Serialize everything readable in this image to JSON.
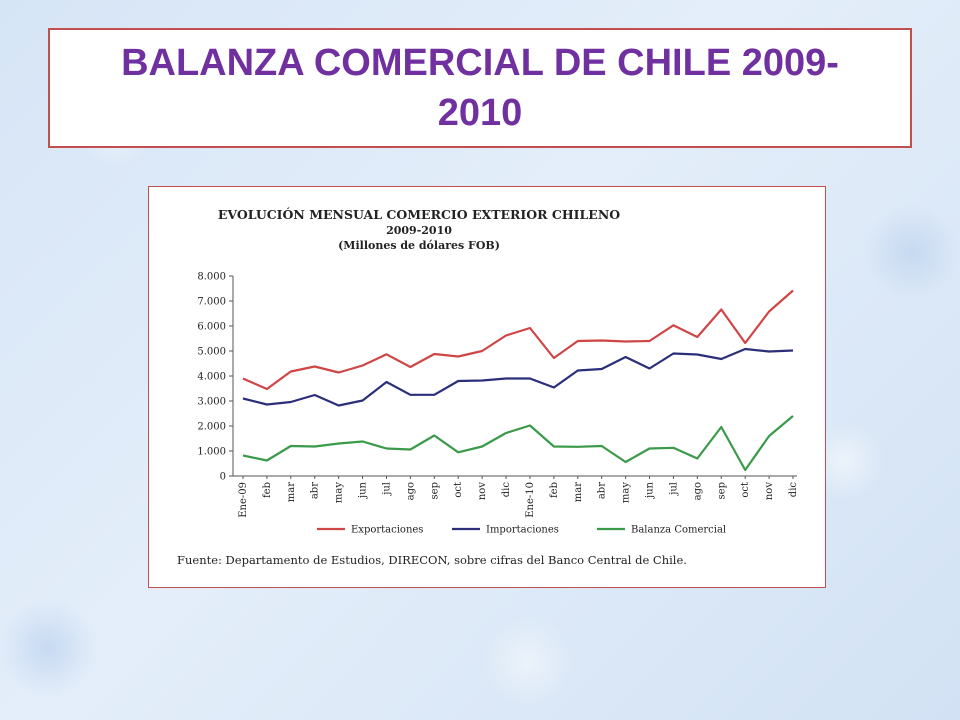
{
  "slide": {
    "title": "BALANZA COMERCIAL DE CHILE 2009-2010"
  },
  "colors": {
    "title": "#7030a0",
    "frame_border": "#c0504d",
    "exportaciones": "#d04545",
    "importaciones": "#2b2f7a",
    "balanza": "#3a9a4a"
  },
  "chart_data": {
    "type": "line",
    "title": "EVOLUCIÓN MENSUAL COMERCIO EXTERIOR CHILENO",
    "subtitle": "2009-2010",
    "subtitle2": "(Millones de dólares FOB)",
    "xlabel": "",
    "ylabel": "",
    "ylim": [
      0,
      8000
    ],
    "yticks": [
      "8.000",
      "7.000",
      "6.000",
      "5.000",
      "4.000",
      "3.000",
      "2.000",
      "1.000",
      "0"
    ],
    "categories": [
      "Ene-09",
      "feb",
      "mar",
      "abr",
      "may",
      "jun",
      "jul",
      "ago",
      "sep",
      "oct",
      "nov",
      "dic",
      "Ene-10",
      "feb",
      "mar",
      "abr",
      "may",
      "jun",
      "jul",
      "ago",
      "sep",
      "oct",
      "nov",
      "dic"
    ],
    "series": [
      {
        "name": "Exportaciones",
        "values": [
          3900,
          3480,
          4180,
          4380,
          4140,
          4420,
          4870,
          4360,
          4880,
          4780,
          5000,
          5620,
          5920,
          4720,
          5400,
          5420,
          5380,
          5400,
          6030,
          5560,
          6660,
          5320,
          6580,
          7420
        ]
      },
      {
        "name": "Importaciones",
        "values": [
          3100,
          2860,
          2960,
          3240,
          2820,
          3020,
          3760,
          3250,
          3250,
          3800,
          3820,
          3900,
          3900,
          3540,
          4220,
          4280,
          4760,
          4300,
          4900,
          4860,
          4680,
          5080,
          4980,
          5020
        ]
      },
      {
        "name": "Balanza Comercial",
        "values": [
          820,
          620,
          1200,
          1180,
          1300,
          1380,
          1100,
          1060,
          1620,
          950,
          1180,
          1720,
          2020,
          1180,
          1170,
          1200,
          560,
          1100,
          1130,
          700,
          1960,
          240,
          1600,
          2400
        ]
      }
    ],
    "grid": false,
    "legend_position": "bottom",
    "source_note": "Fuente: Departamento de Estudios, DIRECON, sobre cifras del Banco Central de Chile."
  }
}
